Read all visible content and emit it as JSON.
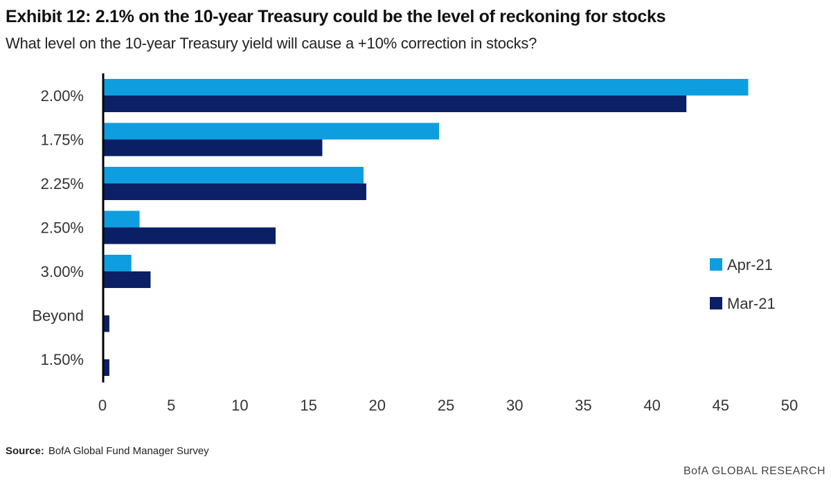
{
  "title": "Exhibit 12: 2.1% on the 10-year Treasury could be the level of reckoning for stocks",
  "subtitle": "What level on the 10-year Treasury yield will cause a +10% correction in stocks?",
  "source_label": "Source:",
  "source_text": "BofA Global Fund Manager Survey",
  "brand": "BofA GLOBAL RESEARCH",
  "colors": {
    "apr": "#0e9ee0",
    "mar": "#0b1f66",
    "axis": "#000000"
  },
  "chart_data": {
    "type": "bar",
    "orientation": "horizontal",
    "categories": [
      "2.00%",
      "1.75%",
      "2.25%",
      "2.50%",
      "3.00%",
      "Beyond",
      "1.50%"
    ],
    "series": [
      {
        "name": "Apr-21",
        "values": [
          47,
          24.5,
          19,
          2.7,
          2.1,
          0,
          0
        ]
      },
      {
        "name": "Mar-21",
        "values": [
          42.5,
          16,
          19.2,
          12.6,
          3.5,
          0.5,
          0.5
        ]
      }
    ],
    "xlim": [
      0,
      50
    ],
    "xticks": [
      0,
      5,
      10,
      15,
      20,
      25,
      30,
      35,
      40,
      45,
      50
    ],
    "legend_position": "right",
    "grid": false
  }
}
